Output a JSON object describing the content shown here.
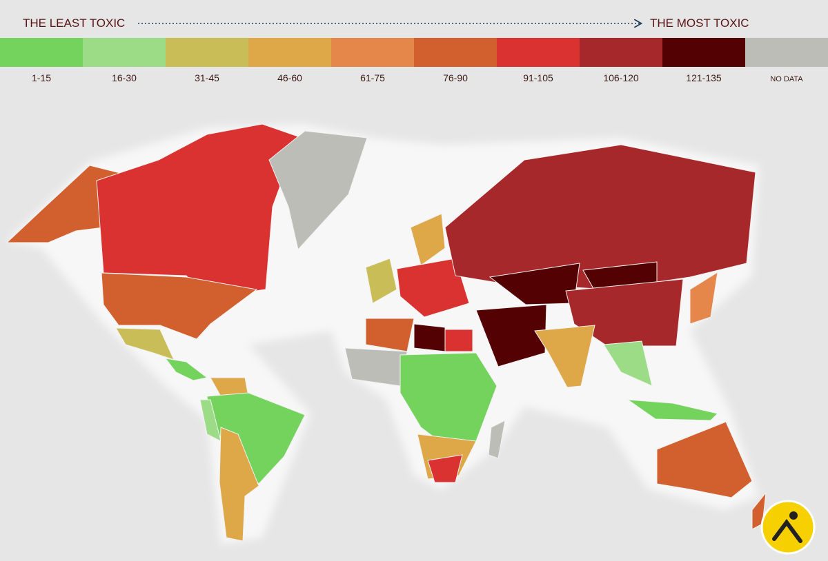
{
  "header": {
    "left": "THE LEAST TOXIC",
    "right": "THE MOST TOXIC"
  },
  "legend": [
    {
      "label": "1-15",
      "color": "#74d35c"
    },
    {
      "label": "16-30",
      "color": "#9ddc86"
    },
    {
      "label": "31-45",
      "color": "#c9bd57"
    },
    {
      "label": "46-60",
      "color": "#dea748"
    },
    {
      "label": "61-75",
      "color": "#e5874a"
    },
    {
      "label": "76-90",
      "color": "#d2602f"
    },
    {
      "label": "91-105",
      "color": "#da3131"
    },
    {
      "label": "106-120",
      "color": "#a7282a"
    },
    {
      "label": "121-135",
      "color": "#540103"
    },
    {
      "label": "NO DATA",
      "color": "#bcbdb6"
    }
  ]
}
